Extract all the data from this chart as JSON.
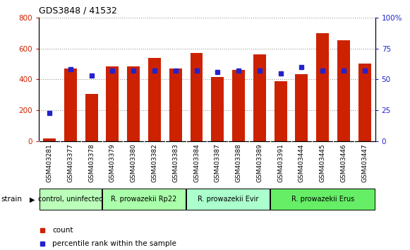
{
  "title": "GDS3848 / 41532",
  "samples": [
    "GSM403281",
    "GSM403377",
    "GSM403378",
    "GSM403379",
    "GSM403380",
    "GSM403382",
    "GSM403383",
    "GSM403384",
    "GSM403387",
    "GSM403388",
    "GSM403389",
    "GSM403391",
    "GSM403444",
    "GSM403445",
    "GSM403446",
    "GSM403447"
  ],
  "counts": [
    20,
    470,
    305,
    485,
    485,
    540,
    470,
    570,
    415,
    460,
    560,
    390,
    435,
    700,
    655,
    500
  ],
  "percentiles": [
    23,
    58,
    53,
    57,
    57,
    57,
    57,
    57,
    56,
    57,
    57,
    55,
    60,
    57,
    57,
    57
  ],
  "groups": [
    {
      "label": "control, uninfected",
      "start": 0,
      "end": 3,
      "color": "#bbffbb"
    },
    {
      "label": "R. prowazekii Rp22",
      "start": 3,
      "end": 7,
      "color": "#aaffaa"
    },
    {
      "label": "R. prowazekii Evir",
      "start": 7,
      "end": 11,
      "color": "#aaffcc"
    },
    {
      "label": "R. prowazekii Erus",
      "start": 11,
      "end": 16,
      "color": "#66ee66"
    }
  ],
  "bar_color": "#cc2200",
  "dot_color": "#2222cc",
  "left_ylim": [
    0,
    800
  ],
  "right_ylim": [
    0,
    100
  ],
  "left_yticks": [
    0,
    200,
    400,
    600,
    800
  ],
  "right_yticks": [
    0,
    25,
    50,
    75,
    100
  ],
  "right_yticklabels": [
    "0",
    "25",
    "50",
    "75",
    "100%"
  ],
  "grid_color": "#999999",
  "tick_label_color_left": "#cc2200",
  "tick_label_color_right": "#2222cc",
  "xtick_bg": "#cccccc",
  "bar_width": 0.6
}
